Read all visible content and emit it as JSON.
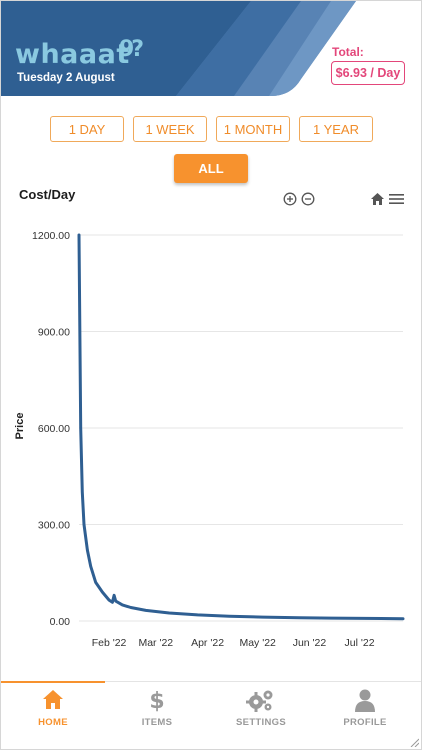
{
  "header": {
    "logo_text": "whaaat",
    "logo_mark": "9?",
    "date": "Tuesday 2 August",
    "total_label": "Total:",
    "total_value": "$6.93 / Day"
  },
  "range_buttons": [
    "1 DAY",
    "1 WEEK",
    "1 MONTH",
    "1 YEAR",
    "ALL"
  ],
  "selected_range": "ALL",
  "chart_toolbar": {
    "zoom_in_icon": "zoom-in-icon",
    "zoom_out_icon": "zoom-out-icon",
    "reset_icon": "home-icon",
    "menu_icon": "hamburger-menu-icon"
  },
  "colors": {
    "header_dark": "#2f5f92",
    "header_light": "#5883b4",
    "accent": "#f7922e",
    "total": "#e3467a",
    "line": "#2f5f92"
  },
  "chart_data": {
    "type": "line",
    "title": "Cost/Day",
    "xlabel": "",
    "ylabel": "Price",
    "ylim": [
      0,
      1200
    ],
    "yticks": [
      "1200.00",
      "900.00",
      "600.00",
      "300.00",
      "0.00"
    ],
    "xticks": [
      "Feb '22",
      "Mar '22",
      "Apr '22",
      "May '22",
      "Jun '22",
      "Jul '22"
    ],
    "grid": true,
    "series": [
      {
        "x": [
          "2022-01-20",
          "2022-01-21",
          "2022-01-22",
          "2022-01-23",
          "2022-01-25",
          "2022-01-27",
          "2022-01-30",
          "2022-02-03",
          "2022-02-07",
          "2022-02-09",
          "2022-02-10",
          "2022-02-11",
          "2022-02-15",
          "2022-02-20",
          "2022-03-01",
          "2022-03-15",
          "2022-04-01",
          "2022-04-20",
          "2022-05-10",
          "2022-06-01",
          "2022-06-20",
          "2022-07-10",
          "2022-08-02"
        ],
        "values": [
          1200,
          600,
          400,
          300,
          220,
          170,
          120,
          90,
          65,
          58,
          80,
          62,
          50,
          42,
          33,
          25,
          19,
          15,
          12,
          10,
          9,
          8,
          7
        ]
      }
    ]
  },
  "nav": {
    "items": [
      {
        "label": "HOME",
        "icon": "home-icon"
      },
      {
        "label": "ITEMS",
        "icon": "dollar-icon"
      },
      {
        "label": "SETTINGS",
        "icon": "gears-icon"
      },
      {
        "label": "PROFILE",
        "icon": "user-icon"
      }
    ],
    "active": "HOME"
  }
}
